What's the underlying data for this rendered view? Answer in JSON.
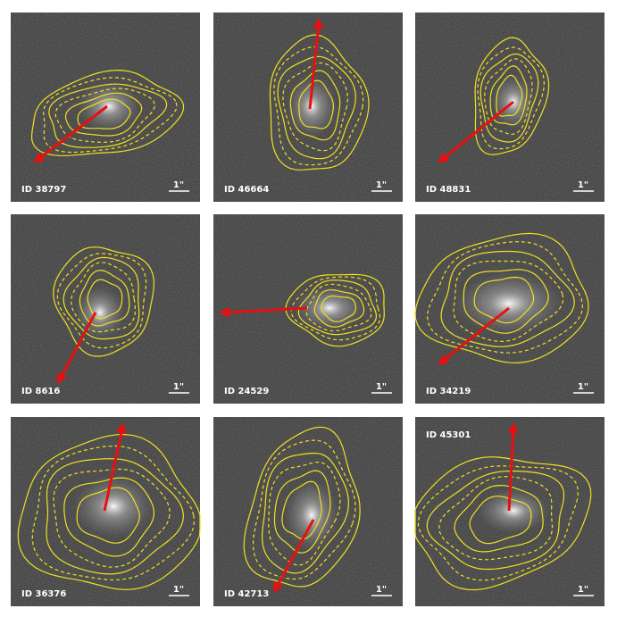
{
  "panels": [
    {
      "id": "ID 38797",
      "scale": "1\""
    },
    {
      "id": "ID 46664",
      "scale": "1\""
    },
    {
      "id": "ID 48831",
      "scale": "1\""
    },
    {
      "id": "ID 8616",
      "scale": "1\""
    },
    {
      "id": "ID 24529",
      "scale": "1\""
    },
    {
      "id": "ID 34219",
      "scale": "1\""
    },
    {
      "id": "ID 36376",
      "scale": "1\""
    },
    {
      "id": "ID 42713",
      "scale": "1\""
    },
    {
      "id": "ID 45301",
      "scale": "1\""
    }
  ]
}
